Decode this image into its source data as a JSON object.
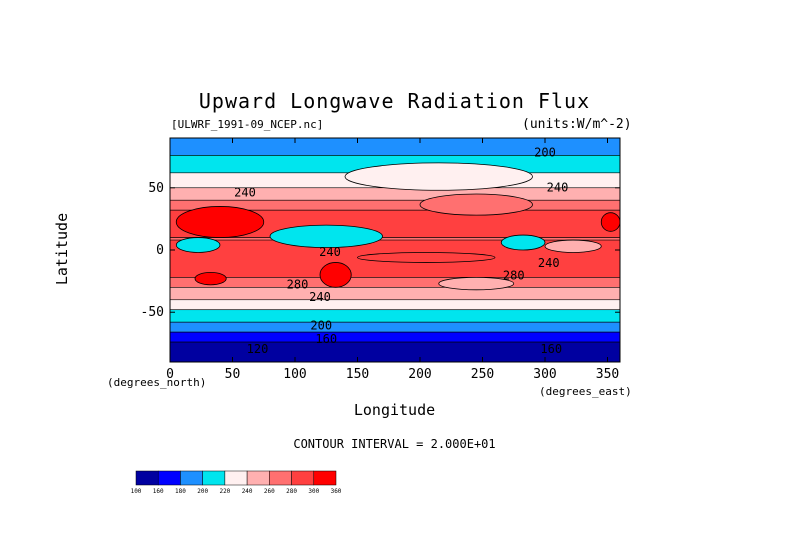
{
  "chart_data": {
    "type": "heatmap",
    "title": "Upward Longwave Radiation Flux",
    "subtitle": "[ULWRF_1991-09_NCEP.nc]",
    "units_label": "(units:W/m^-2)",
    "xlabel": "Longitude",
    "ylabel": "Latitude",
    "x_unit_label": "(degrees_east)",
    "y_unit_label": "(degrees_north)",
    "xlim": [
      0,
      360
    ],
    "ylim": [
      -90,
      90
    ],
    "x_ticks": [
      0,
      50,
      100,
      150,
      200,
      250,
      300,
      350
    ],
    "y_ticks": [
      -50,
      0,
      50
    ],
    "grid": false,
    "contour_interval_text": "CONTOUR INTERVAL = 2.000E+01",
    "contour_labels": [
      {
        "text": "200",
        "lon": 300,
        "lat": 78
      },
      {
        "text": "240",
        "lon": 60,
        "lat": 46
      },
      {
        "text": "240",
        "lon": 310,
        "lat": 50
      },
      {
        "text": "240",
        "lon": 128,
        "lat": -2
      },
      {
        "text": "280",
        "lon": 275,
        "lat": -21
      },
      {
        "text": "240",
        "lon": 303,
        "lat": -11
      },
      {
        "text": "280",
        "lon": 102,
        "lat": -28
      },
      {
        "text": "240",
        "lon": 120,
        "lat": -38
      },
      {
        "text": "200",
        "lon": 121,
        "lat": -61
      },
      {
        "text": "160",
        "lon": 125,
        "lat": -72
      },
      {
        "text": "120",
        "lon": 70,
        "lat": -80
      },
      {
        "text": "160",
        "lon": 305,
        "lat": -80
      }
    ],
    "colorbar": {
      "colors": [
        "#0000a0",
        "#0000ff",
        "#1e90ff",
        "#00e5ee",
        "#fff0f0",
        "#ffb0b0",
        "#ff7070",
        "#ff4040",
        "#ff0000"
      ],
      "labels": [
        "100",
        "160",
        "180",
        "200",
        "220",
        "240",
        "260",
        "280",
        "300",
        "360"
      ]
    },
    "lat_bands": [
      {
        "lat": [
          76,
          90
        ],
        "level": 2
      },
      {
        "lat": [
          62,
          76
        ],
        "level": 3
      },
      {
        "lat": [
          50,
          62
        ],
        "level": 4
      },
      {
        "lat": [
          40,
          50
        ],
        "level": 5
      },
      {
        "lat": [
          32,
          40
        ],
        "level": 6
      },
      {
        "lat": [
          10,
          32
        ],
        "level": 7
      },
      {
        "lat": [
          -8,
          10
        ],
        "level": 6
      },
      {
        "lat": [
          -22,
          8
        ],
        "level": 7
      },
      {
        "lat": [
          -30,
          -22
        ],
        "level": 6
      },
      {
        "lat": [
          -40,
          -30
        ],
        "level": 5
      },
      {
        "lat": [
          -48,
          -40
        ],
        "level": 4
      },
      {
        "lat": [
          -58,
          -48
        ],
        "level": 3
      },
      {
        "lat": [
          -66,
          -58
        ],
        "level": 2
      },
      {
        "lat": [
          -74,
          -66
        ],
        "level": 1
      },
      {
        "lat": [
          -90,
          -74
        ],
        "level": 0
      }
    ],
    "features": [
      {
        "lon": [
          5,
          75
        ],
        "lat": [
          10,
          35
        ],
        "level": 8
      },
      {
        "lon": [
          345,
          360
        ],
        "lat": [
          15,
          30
        ],
        "level": 8
      },
      {
        "lon": [
          120,
          145
        ],
        "lat": [
          -30,
          -10
        ],
        "level": 8
      },
      {
        "lon": [
          20,
          45
        ],
        "lat": [
          -28,
          -18
        ],
        "level": 8
      },
      {
        "lon": [
          80,
          170
        ],
        "lat": [
          2,
          20
        ],
        "level": 3
      },
      {
        "lon": [
          265,
          300
        ],
        "lat": [
          0,
          12
        ],
        "level": 3
      },
      {
        "lon": [
          5,
          40
        ],
        "lat": [
          -2,
          10
        ],
        "level": 3
      },
      {
        "lon": [
          140,
          290
        ],
        "lat": [
          48,
          70
        ],
        "level": 4
      },
      {
        "lon": [
          200,
          290
        ],
        "lat": [
          28,
          45
        ],
        "level": 6
      },
      {
        "lon": [
          150,
          260
        ],
        "lat": [
          -10,
          -2
        ],
        "level": 7
      },
      {
        "lon": [
          215,
          275
        ],
        "lat": [
          -32,
          -22
        ],
        "level": 5
      },
      {
        "lon": [
          300,
          345
        ],
        "lat": [
          -2,
          8
        ],
        "level": 5
      }
    ]
  }
}
